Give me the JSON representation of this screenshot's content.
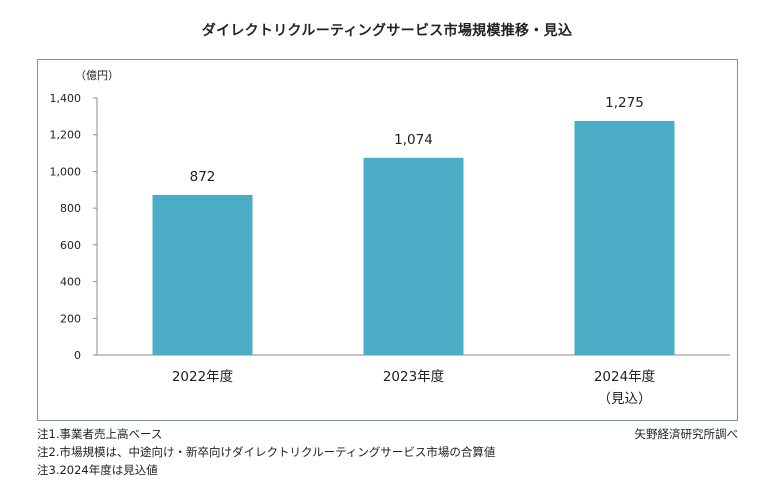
{
  "title": "ダイレクトリクルーティングサービス市場規模推移・見込",
  "chart_data": {
    "type": "bar",
    "unit_label": "（億円）",
    "categories": [
      "2022年度",
      "2023年度",
      "2024年度"
    ],
    "category_sublabels": [
      "",
      "",
      "（見込）"
    ],
    "values": [
      872,
      1074,
      1275
    ],
    "value_labels": [
      "872",
      "1,074",
      "1,275"
    ],
    "ylim": [
      0,
      1400
    ],
    "yticks": [
      0,
      200,
      400,
      600,
      800,
      1000,
      1200,
      1400
    ],
    "ytick_labels": [
      "0",
      "200",
      "400",
      "600",
      "800",
      "1,000",
      "1,200",
      "1,400"
    ],
    "bar_color": "#4bacc6",
    "grid": false,
    "legend": "none"
  },
  "notes": [
    "注1.事業者売上高ベース",
    "注2.市場規模は、中途向け・新卒向けダイレクトリクルーティングサービス市場の合算値",
    "注3.2024年度は見込値"
  ],
  "source": "矢野経済研究所調べ"
}
